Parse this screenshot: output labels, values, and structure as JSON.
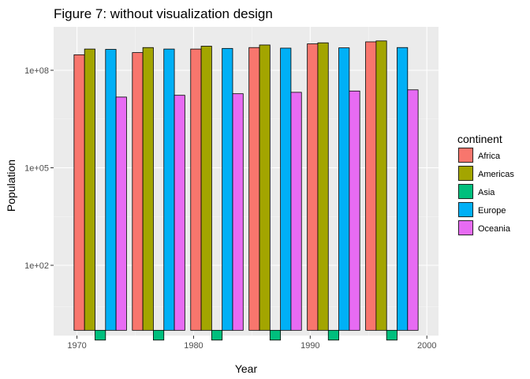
{
  "chart_data": {
    "type": "bar",
    "title": "Figure 7: without visualization design",
    "xlabel": "Year",
    "ylabel": "Population",
    "y_scale": "log10",
    "ylim": [
      0.5,
      2000000000
    ],
    "xlim": [
      1968,
      2001
    ],
    "grid": true,
    "x_ticks": [
      1970,
      1980,
      1990,
      2000
    ],
    "y_ticks": [
      100,
      100000,
      100000000
    ],
    "y_tick_labels": [
      "1e+02",
      "1e+05",
      "1e+08"
    ],
    "legend": {
      "title": "continent",
      "position": "right"
    },
    "group_x": [
      1972,
      1977,
      1982,
      1987,
      1992,
      1997
    ],
    "series": [
      {
        "name": "Africa",
        "color": "#F8766D",
        "values": [
          300000000,
          350000000,
          450000000,
          500000000,
          650000000,
          750000000
        ]
      },
      {
        "name": "Americas",
        "color": "#A3A500",
        "values": [
          450000000,
          500000000,
          550000000,
          600000000,
          700000000,
          800000000
        ]
      },
      {
        "name": "Asia",
        "color": "#00BF7D",
        "values": [
          0.5,
          0.5,
          0.5,
          0.5,
          0.5,
          0.5
        ]
      },
      {
        "name": "Europe",
        "color": "#00B0F6",
        "values": [
          440000000,
          450000000,
          470000000,
          480000000,
          490000000,
          500000000
        ]
      },
      {
        "name": "Oceania",
        "color": "#E76BF3",
        "values": [
          15000000,
          17000000,
          19000000,
          21000000,
          23000000,
          25000000
        ]
      }
    ]
  }
}
